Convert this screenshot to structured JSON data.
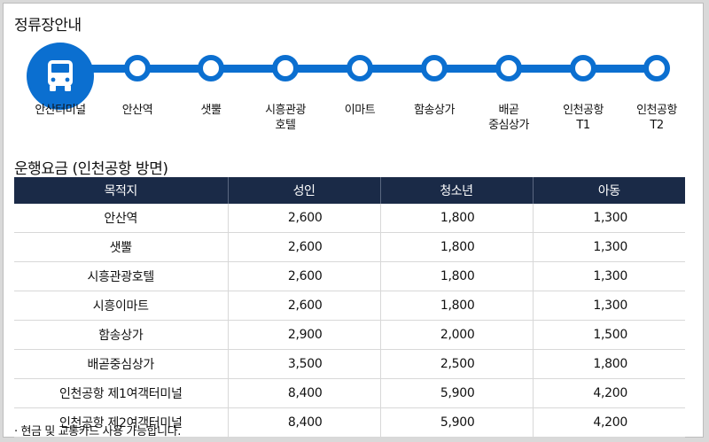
{
  "route_section": {
    "title": "정류장안내",
    "start_icon": "bus-icon",
    "stops": [
      {
        "label": "안산터미널"
      },
      {
        "label": "안산역"
      },
      {
        "label": "샛뿔"
      },
      {
        "label": "시흥관광\n호텔"
      },
      {
        "label": "이마트"
      },
      {
        "label": "함송상가"
      },
      {
        "label": "배곧\n중심상가"
      },
      {
        "label": "인천공항\nT1"
      },
      {
        "label": "인천공항\nT2"
      }
    ],
    "line_color": "#0b6fd0"
  },
  "fare_section": {
    "title": "운행요금 (인천공항 방면)",
    "headers": [
      "목적지",
      "성인",
      "청소년",
      "아동"
    ],
    "rows": [
      [
        "안산역",
        "2,600",
        "1,800",
        "1,300"
      ],
      [
        "샛뿔",
        "2,600",
        "1,800",
        "1,300"
      ],
      [
        "시흥관광호텔",
        "2,600",
        "1,800",
        "1,300"
      ],
      [
        "시흥이마트",
        "2,600",
        "1,800",
        "1,300"
      ],
      [
        "함송상가",
        "2,900",
        "2,000",
        "1,500"
      ],
      [
        "배곧중심상가",
        "3,500",
        "2,500",
        "1,800"
      ],
      [
        "인천공항 제1여객터미널",
        "8,400",
        "5,900",
        "4,200"
      ],
      [
        "인천공항 제2여객터미널",
        "8,400",
        "5,900",
        "4,200"
      ]
    ],
    "header_color": "#1a2a47"
  },
  "note": "· 현금 및 교통카드 사용 가능합니다."
}
